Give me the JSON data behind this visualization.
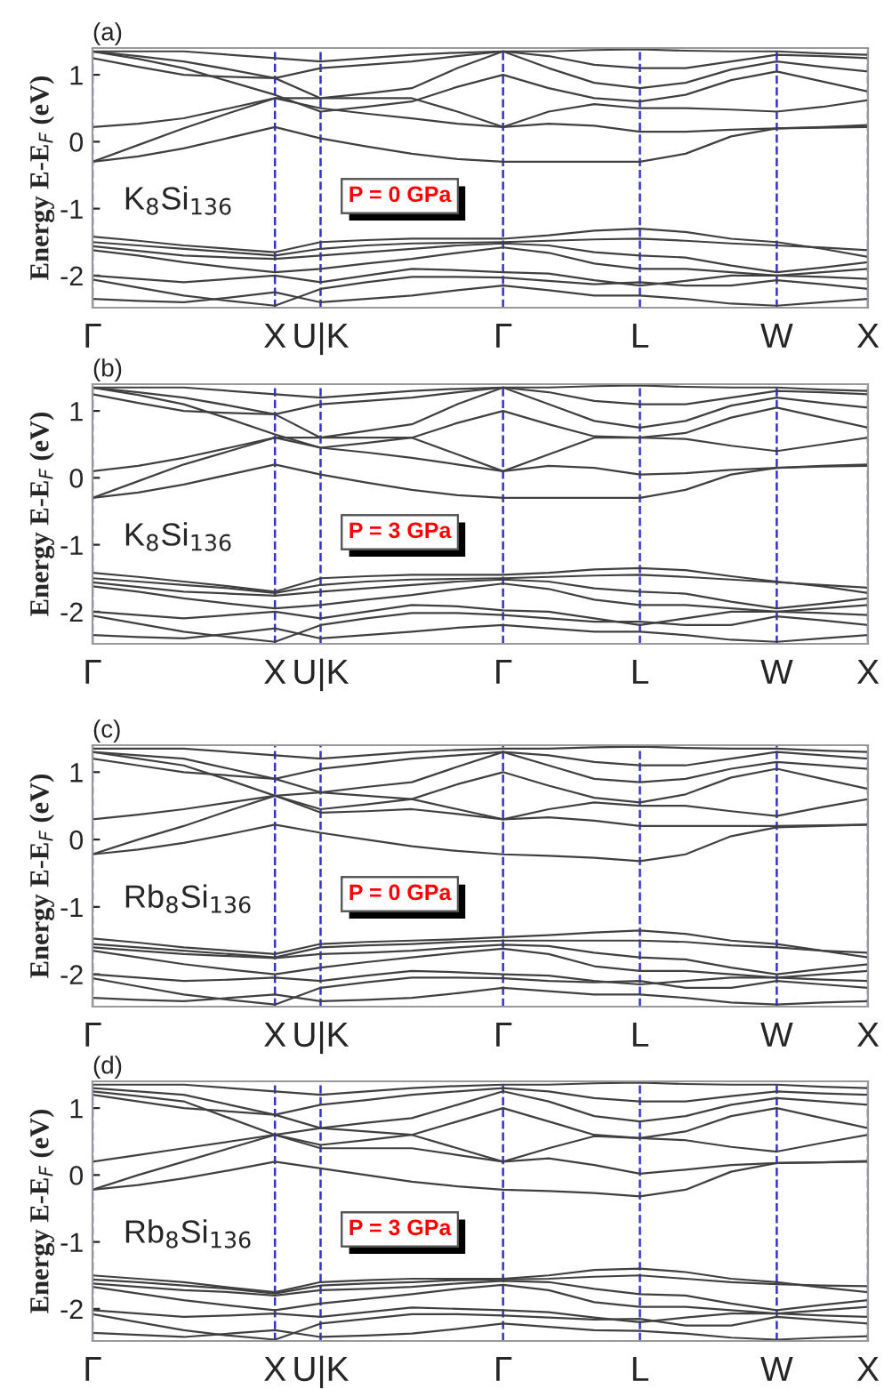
{
  "chart_data": [
    {
      "type": "line",
      "ylabel": "Energy E-E$_{F}$ (eV)",
      "annotations": [
        "(a)",
        "K$_{8}$Si$_{136}$",
        "P = 0 GPa"
      ],
      "categories": [
        "Γ",
        null,
        null,
        null,
        "X",
        "U|K",
        null,
        null,
        null,
        "Γ",
        null,
        null,
        "L",
        null,
        null,
        "W",
        null,
        "X"
      ],
      "ylim": [
        -2.48,
        1.4
      ],
      "yticks": [
        -2,
        -1,
        0,
        1
      ],
      "legend": false,
      "grid": "x",
      "line_style": "solid",
      "marker": "none",
      "series": [
        {
          "color": "#404040",
          "values": [
            -0.3,
            -0.22,
            -0.1,
            0.06,
            0.22,
            0.05,
            -0.07,
            -0.18,
            -0.26,
            -0.3,
            -0.3,
            -0.3,
            -0.3,
            -0.18,
            0.08,
            0.2,
            0.21,
            0.22
          ]
        },
        {
          "color": "#404040",
          "values": [
            0.22,
            0.27,
            0.35,
            0.5,
            0.65,
            0.5,
            0.42,
            0.35,
            0.27,
            0.22,
            0.27,
            0.24,
            0.15,
            0.15,
            0.18,
            0.2,
            0.22,
            0.25
          ]
        },
        {
          "color": "#404040",
          "values": [
            -0.3,
            -0.05,
            0.2,
            0.43,
            0.65,
            0.65,
            0.65,
            0.65,
            0.45,
            0.22,
            0.45,
            0.56,
            0.5,
            0.5,
            0.48,
            0.45,
            0.52,
            0.62
          ]
        },
        {
          "color": "#404040",
          "values": [
            1.35,
            1.24,
            1.1,
            0.9,
            0.7,
            0.45,
            0.52,
            0.6,
            0.82,
            1.0,
            0.8,
            0.65,
            0.6,
            0.7,
            0.92,
            1.05,
            0.9,
            0.75
          ]
        },
        {
          "color": "#404040",
          "values": [
            1.35,
            1.28,
            1.2,
            1.08,
            0.95,
            0.65,
            0.72,
            0.8,
            1.1,
            1.35,
            1.1,
            0.88,
            0.8,
            0.88,
            1.08,
            1.2,
            1.12,
            1.05
          ]
        },
        {
          "color": "#404040",
          "values": [
            1.25,
            1.12,
            1.0,
            0.97,
            0.95,
            1.1,
            1.15,
            1.2,
            1.28,
            1.35,
            1.28,
            1.15,
            1.1,
            1.1,
            1.2,
            1.3,
            1.28,
            1.25
          ]
        },
        {
          "color": "#404040",
          "values": [
            1.35,
            1.35,
            1.35,
            1.3,
            1.25,
            1.2,
            1.25,
            1.3,
            1.33,
            1.35,
            1.35,
            1.37,
            1.38,
            1.36,
            1.35,
            1.35,
            1.32,
            1.3
          ]
        },
        {
          "color": "#404040",
          "values": [
            -1.42,
            -1.48,
            -1.55,
            -1.6,
            -1.65,
            -1.5,
            -1.47,
            -1.45,
            -1.45,
            -1.45,
            -1.4,
            -1.33,
            -1.3,
            -1.35,
            -1.45,
            -1.5,
            -1.6,
            -1.72
          ]
        },
        {
          "color": "#404040",
          "values": [
            -1.5,
            -1.55,
            -1.6,
            -1.65,
            -1.7,
            -1.6,
            -1.55,
            -1.52,
            -1.51,
            -1.5,
            -1.48,
            -1.46,
            -1.45,
            -1.48,
            -1.52,
            -1.55,
            -1.58,
            -1.62
          ]
        },
        {
          "color": "#404040",
          "values": [
            -1.56,
            -1.63,
            -1.7,
            -1.73,
            -1.75,
            -1.7,
            -1.65,
            -1.6,
            -1.55,
            -1.52,
            -1.55,
            -1.65,
            -1.7,
            -1.73,
            -1.85,
            -1.95,
            -1.88,
            -1.8
          ]
        },
        {
          "color": "#404040",
          "values": [
            -1.62,
            -1.7,
            -1.8,
            -1.88,
            -1.95,
            -1.9,
            -1.82,
            -1.75,
            -1.66,
            -1.58,
            -1.66,
            -1.82,
            -1.9,
            -1.9,
            -1.95,
            -2.0,
            -1.95,
            -1.9
          ]
        },
        {
          "color": "#404040",
          "values": [
            -2.0,
            -2.05,
            -2.1,
            -2.05,
            -2.0,
            -2.1,
            -2.0,
            -1.9,
            -1.92,
            -1.95,
            -1.97,
            -2.07,
            -2.15,
            -2.08,
            -2.0,
            -2.0,
            -2.02,
            -2.05
          ]
        },
        {
          "color": "#404040",
          "values": [
            -2.06,
            -2.18,
            -2.3,
            -2.38,
            -2.45,
            -2.2,
            -2.1,
            -2.02,
            -2.02,
            -2.03,
            -2.08,
            -2.13,
            -2.1,
            -2.15,
            -2.15,
            -2.07,
            -2.13,
            -2.2
          ]
        },
        {
          "color": "#404040",
          "values": [
            -2.35,
            -2.38,
            -2.4,
            -2.33,
            -2.25,
            -2.4,
            -2.35,
            -2.3,
            -2.22,
            -2.15,
            -2.22,
            -2.3,
            -2.3,
            -2.35,
            -2.42,
            -2.45,
            -2.4,
            -2.35
          ]
        }
      ]
    },
    {
      "type": "line",
      "ylabel": "Energy E-E$_{F}$ (eV)",
      "annotations": [
        "(b)",
        "K$_{8}$Si$_{136}$",
        "P = 3 GPa"
      ],
      "categories": [
        "Γ",
        null,
        null,
        null,
        "X",
        "U|K",
        null,
        null,
        null,
        "Γ",
        null,
        null,
        "L",
        null,
        null,
        "W",
        null,
        "X"
      ],
      "ylim": [
        -2.48,
        1.4
      ],
      "yticks": [
        -2,
        -1,
        0,
        1
      ],
      "legend": false,
      "grid": "x",
      "line_style": "solid",
      "marker": "none",
      "series": [
        {
          "color": "#404040",
          "values": [
            -0.3,
            -0.22,
            -0.1,
            0.05,
            0.2,
            0.05,
            -0.07,
            -0.18,
            -0.26,
            -0.3,
            -0.3,
            -0.3,
            -0.3,
            -0.18,
            0.05,
            0.15,
            0.17,
            0.18
          ]
        },
        {
          "color": "#404040",
          "values": [
            0.1,
            0.18,
            0.3,
            0.45,
            0.6,
            0.45,
            0.38,
            0.3,
            0.2,
            0.1,
            0.18,
            0.15,
            0.05,
            0.07,
            0.12,
            0.15,
            0.18,
            0.2
          ]
        },
        {
          "color": "#404040",
          "values": [
            -0.3,
            -0.05,
            0.2,
            0.4,
            0.6,
            0.6,
            0.6,
            0.6,
            0.35,
            0.1,
            0.35,
            0.6,
            0.6,
            0.58,
            0.48,
            0.4,
            0.5,
            0.6
          ]
        },
        {
          "color": "#404040",
          "values": [
            1.35,
            1.24,
            1.1,
            0.88,
            0.65,
            0.45,
            0.52,
            0.6,
            0.82,
            1.0,
            0.8,
            0.62,
            0.6,
            0.67,
            0.9,
            1.05,
            0.9,
            0.75
          ]
        },
        {
          "color": "#404040",
          "values": [
            1.35,
            1.28,
            1.2,
            1.08,
            0.95,
            0.6,
            0.7,
            0.8,
            1.1,
            1.35,
            1.1,
            0.85,
            0.75,
            0.85,
            1.08,
            1.2,
            1.12,
            1.05
          ]
        },
        {
          "color": "#404040",
          "values": [
            1.25,
            1.12,
            1.0,
            0.97,
            0.95,
            1.1,
            1.15,
            1.2,
            1.28,
            1.35,
            1.28,
            1.15,
            1.1,
            1.1,
            1.2,
            1.3,
            1.28,
            1.25
          ]
        },
        {
          "color": "#404040",
          "values": [
            1.35,
            1.35,
            1.35,
            1.3,
            1.25,
            1.2,
            1.25,
            1.3,
            1.33,
            1.35,
            1.35,
            1.37,
            1.38,
            1.36,
            1.35,
            1.35,
            1.32,
            1.3
          ]
        },
        {
          "color": "#404040",
          "values": [
            -1.42,
            -1.48,
            -1.55,
            -1.62,
            -1.7,
            -1.5,
            -1.47,
            -1.45,
            -1.45,
            -1.45,
            -1.42,
            -1.37,
            -1.35,
            -1.38,
            -1.47,
            -1.55,
            -1.62,
            -1.72
          ]
        },
        {
          "color": "#404040",
          "values": [
            -1.5,
            -1.55,
            -1.6,
            -1.65,
            -1.72,
            -1.6,
            -1.55,
            -1.52,
            -1.51,
            -1.5,
            -1.48,
            -1.46,
            -1.45,
            -1.48,
            -1.52,
            -1.56,
            -1.6,
            -1.64
          ]
        },
        {
          "color": "#404040",
          "values": [
            -1.56,
            -1.63,
            -1.7,
            -1.73,
            -1.76,
            -1.7,
            -1.65,
            -1.6,
            -1.55,
            -1.52,
            -1.55,
            -1.65,
            -1.7,
            -1.73,
            -1.85,
            -1.95,
            -1.88,
            -1.8
          ]
        },
        {
          "color": "#404040",
          "values": [
            -1.62,
            -1.7,
            -1.8,
            -1.88,
            -1.95,
            -1.9,
            -1.82,
            -1.75,
            -1.66,
            -1.58,
            -1.66,
            -1.82,
            -1.9,
            -1.9,
            -1.95,
            -2.0,
            -1.95,
            -1.9
          ]
        },
        {
          "color": "#404040",
          "values": [
            -2.0,
            -2.05,
            -2.1,
            -2.05,
            -2.0,
            -2.1,
            -2.0,
            -1.9,
            -1.92,
            -1.98,
            -2.0,
            -2.1,
            -2.2,
            -2.1,
            -2.0,
            -2.0,
            -2.02,
            -2.05
          ]
        },
        {
          "color": "#404040",
          "values": [
            -2.06,
            -2.18,
            -2.3,
            -2.38,
            -2.45,
            -2.2,
            -2.1,
            -2.02,
            -2.02,
            -2.05,
            -2.1,
            -2.15,
            -2.15,
            -2.2,
            -2.2,
            -2.07,
            -2.13,
            -2.2
          ]
        },
        {
          "color": "#404040",
          "values": [
            -2.35,
            -2.38,
            -2.4,
            -2.33,
            -2.25,
            -2.4,
            -2.35,
            -2.3,
            -2.24,
            -2.2,
            -2.25,
            -2.3,
            -2.3,
            -2.35,
            -2.42,
            -2.45,
            -2.4,
            -2.35
          ]
        }
      ]
    },
    {
      "type": "line",
      "ylabel": "Energy E-E$_{F}$ (eV)",
      "annotations": [
        "(c)",
        "Rb$_{8}$Si$_{136}$",
        "P = 0 GPa"
      ],
      "categories": [
        "Γ",
        null,
        null,
        null,
        "X",
        "U|K",
        null,
        null,
        null,
        "Γ",
        null,
        null,
        "L",
        null,
        null,
        "W",
        null,
        "X"
      ],
      "ylim": [
        -2.48,
        1.4
      ],
      "yticks": [
        -2,
        -1,
        0,
        1
      ],
      "legend": false,
      "grid": "x",
      "line_style": "solid",
      "marker": "none",
      "series": [
        {
          "color": "#404040",
          "values": [
            -0.22,
            -0.15,
            -0.05,
            0.08,
            0.22,
            0.1,
            0.0,
            -0.1,
            -0.17,
            -0.22,
            -0.24,
            -0.27,
            -0.32,
            -0.22,
            0.05,
            0.18,
            0.2,
            0.22
          ]
        },
        {
          "color": "#404040",
          "values": [
            0.3,
            0.37,
            0.45,
            0.55,
            0.65,
            0.4,
            0.42,
            0.45,
            0.38,
            0.3,
            0.33,
            0.28,
            0.2,
            0.2,
            0.2,
            0.2,
            0.21,
            0.22
          ]
        },
        {
          "color": "#404040",
          "values": [
            -0.22,
            0.0,
            0.2,
            0.43,
            0.65,
            0.7,
            0.65,
            0.6,
            0.45,
            0.3,
            0.45,
            0.55,
            0.5,
            0.5,
            0.42,
            0.35,
            0.48,
            0.6
          ]
        },
        {
          "color": "#404040",
          "values": [
            1.3,
            1.2,
            1.1,
            0.88,
            0.65,
            0.45,
            0.52,
            0.6,
            0.82,
            1.0,
            0.8,
            0.62,
            0.55,
            0.67,
            0.92,
            1.05,
            0.9,
            0.75
          ]
        },
        {
          "color": "#404040",
          "values": [
            1.3,
            1.25,
            1.2,
            1.05,
            0.9,
            0.7,
            0.78,
            0.85,
            1.08,
            1.3,
            1.1,
            0.9,
            0.85,
            0.9,
            1.05,
            1.15,
            1.1,
            1.05
          ]
        },
        {
          "color": "#404040",
          "values": [
            1.2,
            1.1,
            1.0,
            0.95,
            0.9,
            1.05,
            1.12,
            1.2,
            1.25,
            1.3,
            1.25,
            1.15,
            1.1,
            1.1,
            1.2,
            1.3,
            1.25,
            1.2
          ]
        },
        {
          "color": "#404040",
          "values": [
            1.35,
            1.35,
            1.35,
            1.3,
            1.25,
            1.2,
            1.25,
            1.3,
            1.33,
            1.35,
            1.35,
            1.37,
            1.38,
            1.36,
            1.35,
            1.35,
            1.32,
            1.3
          ]
        },
        {
          "color": "#404040",
          "values": [
            -1.47,
            -1.53,
            -1.6,
            -1.65,
            -1.7,
            -1.55,
            -1.52,
            -1.5,
            -1.48,
            -1.45,
            -1.42,
            -1.38,
            -1.35,
            -1.4,
            -1.5,
            -1.55,
            -1.65,
            -1.75
          ]
        },
        {
          "color": "#404040",
          "values": [
            -1.55,
            -1.6,
            -1.65,
            -1.7,
            -1.75,
            -1.6,
            -1.57,
            -1.55,
            -1.52,
            -1.5,
            -1.5,
            -1.5,
            -1.5,
            -1.52,
            -1.57,
            -1.6,
            -1.65,
            -1.68
          ]
        },
        {
          "color": "#404040",
          "values": [
            -1.6,
            -1.65,
            -1.7,
            -1.73,
            -1.76,
            -1.7,
            -1.68,
            -1.65,
            -1.6,
            -1.56,
            -1.58,
            -1.68,
            -1.75,
            -1.78,
            -1.9,
            -2.0,
            -1.92,
            -1.85
          ]
        },
        {
          "color": "#404040",
          "values": [
            -1.65,
            -1.75,
            -1.85,
            -1.93,
            -2.0,
            -1.9,
            -1.82,
            -1.75,
            -1.68,
            -1.62,
            -1.7,
            -1.88,
            -1.95,
            -1.95,
            -2.0,
            -2.05,
            -2.0,
            -1.95
          ]
        },
        {
          "color": "#404040",
          "values": [
            -2.0,
            -2.05,
            -2.1,
            -2.08,
            -2.05,
            -2.1,
            -2.02,
            -1.95,
            -1.97,
            -2.0,
            -2.02,
            -2.1,
            -2.15,
            -2.1,
            -2.05,
            -2.05,
            -2.08,
            -2.1
          ]
        },
        {
          "color": "#404040",
          "values": [
            -2.06,
            -2.18,
            -2.3,
            -2.38,
            -2.45,
            -2.2,
            -2.12,
            -2.05,
            -2.05,
            -2.06,
            -2.1,
            -2.12,
            -2.1,
            -2.2,
            -2.2,
            -2.1,
            -2.15,
            -2.2
          ]
        },
        {
          "color": "#404040",
          "values": [
            -2.35,
            -2.38,
            -2.4,
            -2.35,
            -2.3,
            -2.4,
            -2.38,
            -2.35,
            -2.28,
            -2.2,
            -2.25,
            -2.3,
            -2.3,
            -2.35,
            -2.42,
            -2.45,
            -2.42,
            -2.4
          ]
        }
      ]
    },
    {
      "type": "line",
      "ylabel": "Energy E-E$_{F}$ (eV)",
      "annotations": [
        "(d)",
        "Rb$_{8}$Si$_{136}$",
        "P = 3 GPa"
      ],
      "categories": [
        "Γ",
        null,
        null,
        null,
        "X",
        "U|K",
        null,
        null,
        null,
        "Γ",
        null,
        null,
        "L",
        null,
        null,
        "W",
        null,
        "X"
      ],
      "ylim": [
        -2.48,
        1.4
      ],
      "yticks": [
        -2,
        -1,
        0,
        1
      ],
      "legend": false,
      "grid": "x",
      "line_style": "solid",
      "marker": "none",
      "series": [
        {
          "color": "#404040",
          "values": [
            -0.22,
            -0.15,
            -0.05,
            0.07,
            0.2,
            0.1,
            0.0,
            -0.1,
            -0.17,
            -0.22,
            -0.24,
            -0.27,
            -0.32,
            -0.22,
            0.05,
            0.18,
            0.19,
            0.2
          ]
        },
        {
          "color": "#404040",
          "values": [
            0.2,
            0.3,
            0.4,
            0.5,
            0.6,
            0.4,
            0.4,
            0.4,
            0.3,
            0.2,
            0.25,
            0.15,
            0.02,
            0.08,
            0.15,
            0.18,
            0.19,
            0.21
          ]
        },
        {
          "color": "#404040",
          "values": [
            -0.22,
            0.0,
            0.2,
            0.4,
            0.6,
            0.7,
            0.65,
            0.6,
            0.4,
            0.2,
            0.4,
            0.58,
            0.55,
            0.52,
            0.42,
            0.35,
            0.48,
            0.6
          ]
        },
        {
          "color": "#404040",
          "values": [
            1.25,
            1.18,
            1.1,
            0.85,
            0.6,
            0.45,
            0.52,
            0.6,
            0.8,
            1.0,
            0.8,
            0.6,
            0.55,
            0.65,
            0.88,
            1.0,
            0.85,
            0.7
          ]
        },
        {
          "color": "#404040",
          "values": [
            1.3,
            1.25,
            1.2,
            1.05,
            0.9,
            0.7,
            0.78,
            0.85,
            1.05,
            1.25,
            1.1,
            0.88,
            0.8,
            0.88,
            1.05,
            1.15,
            1.1,
            1.05
          ]
        },
        {
          "color": "#404040",
          "values": [
            1.2,
            1.1,
            1.0,
            0.95,
            0.9,
            1.05,
            1.12,
            1.2,
            1.25,
            1.3,
            1.25,
            1.15,
            1.1,
            1.1,
            1.18,
            1.25,
            1.22,
            1.2
          ]
        },
        {
          "color": "#404040",
          "values": [
            1.35,
            1.35,
            1.35,
            1.3,
            1.25,
            1.2,
            1.25,
            1.3,
            1.33,
            1.35,
            1.35,
            1.37,
            1.38,
            1.36,
            1.35,
            1.35,
            1.32,
            1.3
          ]
        },
        {
          "color": "#404040",
          "values": [
            -1.5,
            -1.55,
            -1.6,
            -1.68,
            -1.75,
            -1.6,
            -1.57,
            -1.55,
            -1.55,
            -1.55,
            -1.5,
            -1.42,
            -1.4,
            -1.45,
            -1.55,
            -1.6,
            -1.68,
            -1.75
          ]
        },
        {
          "color": "#404040",
          "values": [
            -1.56,
            -1.6,
            -1.65,
            -1.7,
            -1.77,
            -1.65,
            -1.62,
            -1.6,
            -1.57,
            -1.56,
            -1.55,
            -1.52,
            -1.5,
            -1.55,
            -1.6,
            -1.63,
            -1.65,
            -1.66
          ]
        },
        {
          "color": "#404040",
          "values": [
            -1.62,
            -1.67,
            -1.72,
            -1.75,
            -1.8,
            -1.72,
            -1.7,
            -1.67,
            -1.62,
            -1.58,
            -1.6,
            -1.7,
            -1.78,
            -1.8,
            -1.92,
            -2.02,
            -1.94,
            -1.87
          ]
        },
        {
          "color": "#404040",
          "values": [
            -1.67,
            -1.77,
            -1.87,
            -1.95,
            -2.02,
            -1.92,
            -1.85,
            -1.78,
            -1.7,
            -1.64,
            -1.72,
            -1.9,
            -1.97,
            -1.97,
            -2.02,
            -2.07,
            -2.02,
            -1.97
          ]
        },
        {
          "color": "#404040",
          "values": [
            -2.02,
            -2.07,
            -2.12,
            -2.1,
            -2.07,
            -2.12,
            -2.05,
            -1.98,
            -2.0,
            -2.02,
            -2.05,
            -2.13,
            -2.2,
            -2.13,
            -2.07,
            -2.07,
            -2.1,
            -2.12
          ]
        },
        {
          "color": "#404040",
          "values": [
            -2.08,
            -2.2,
            -2.32,
            -2.4,
            -2.46,
            -2.22,
            -2.15,
            -2.08,
            -2.08,
            -2.1,
            -2.13,
            -2.16,
            -2.15,
            -2.25,
            -2.25,
            -2.12,
            -2.17,
            -2.22
          ]
        },
        {
          "color": "#404040",
          "values": [
            -2.36,
            -2.39,
            -2.42,
            -2.37,
            -2.32,
            -2.42,
            -2.4,
            -2.37,
            -2.3,
            -2.22,
            -2.27,
            -2.32,
            -2.33,
            -2.37,
            -2.43,
            -2.46,
            -2.43,
            -2.41
          ]
        }
      ]
    }
  ]
}
